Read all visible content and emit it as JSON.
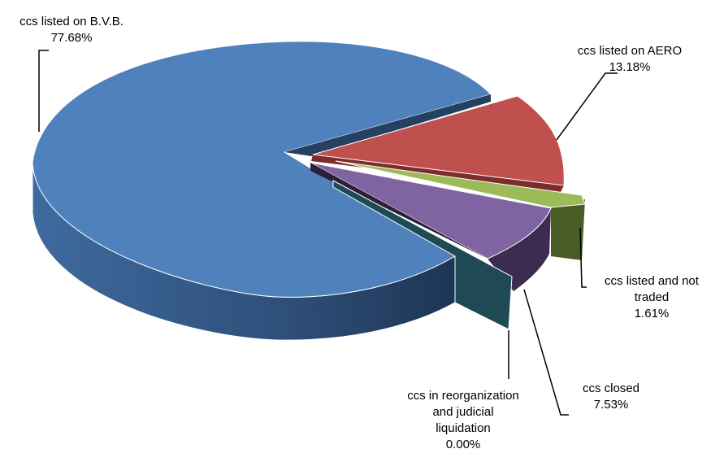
{
  "chart_data": {
    "type": "pie",
    "style": "3d-exploded",
    "title": "",
    "legend": "none",
    "slices": [
      {
        "label_lines": [
          "ccs listed on B.V.B."
        ],
        "pct": "77.68%",
        "value": 77.68,
        "color": "#4f81bd",
        "side": "#3d6596"
      },
      {
        "label_lines": [
          "ccs listed on AERO"
        ],
        "pct": "13.18%",
        "value": 13.18,
        "color": "#c0504d",
        "side": "#7d2c2b"
      },
      {
        "label_lines": [
          "ccs listed and not",
          "traded"
        ],
        "pct": "1.61%",
        "value": 1.61,
        "color": "#9bbb59",
        "side": "#4a5c25"
      },
      {
        "label_lines": [
          "ccs closed"
        ],
        "pct": "7.53%",
        "value": 7.53,
        "color": "#8064a2",
        "side": "#3c2c4f"
      },
      {
        "label_lines": [
          "ccs in reorganization",
          "and judicial",
          "liquidation"
        ],
        "pct": "0.00%",
        "value": 0.0,
        "color": "#4bacc6",
        "side": "#1f4a55"
      }
    ]
  }
}
